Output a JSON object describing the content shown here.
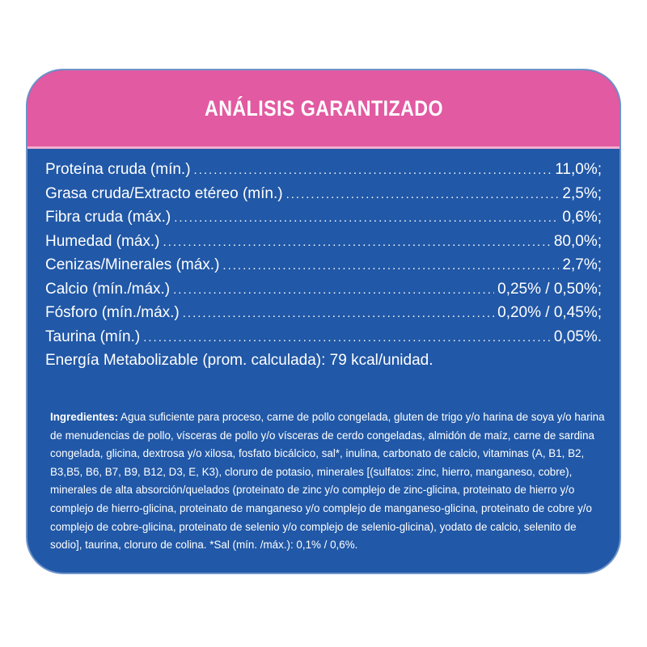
{
  "header": {
    "title": "ANÁLISIS GARANTIZADO"
  },
  "analysis": {
    "rows": [
      {
        "label": "Proteína cruda (mín.)",
        "value": "11,0%;"
      },
      {
        "label": "Grasa cruda/Extracto etéreo (mín.)",
        "value": "2,5%;"
      },
      {
        "label": "Fibra cruda (máx.)",
        "value": "0,6%;"
      },
      {
        "label": "Humedad (máx.)",
        "value": "80,0%;"
      },
      {
        "label": "Cenizas/Minerales (máx.)",
        "value": "2,7%;"
      },
      {
        "label": "Calcio (mín./máx.)",
        "value": "0,25% / 0,50%;"
      },
      {
        "label": "Fósforo (mín./máx.)",
        "value": "0,20% / 0,45%;"
      },
      {
        "label": "Taurina (mín.)",
        "value": "0,05%."
      }
    ],
    "energy": "Energía Metabolizable (prom. calculada): 79 kcal/unidad."
  },
  "ingredients": {
    "label": "Ingredientes:",
    "text": " Agua suficiente para proceso, carne de pollo congelada, gluten de trigo y/o harina de soya y/o harina de menudencias de pollo, vísceras de pollo y/o vísceras de cerdo congeladas, almidón de maíz, carne de sardina congelada, glicina, dextrosa y/o xilosa, fosfato bicálcico, sal*, inulina, carbonato de calcio, vitaminas (A, B1, B2, B3,B5, B6, B7, B9, B12, D3, E, K3), cloruro de potasio, minerales [(sulfatos: zinc, hierro, manganeso, cobre), minerales de alta absorción/quelados (proteinato de zinc y/o complejo de zinc-glicina, proteinato de hierro y/o complejo de hierro-glicina, proteinato de manganeso y/o complejo de manganeso-glicina, proteinato de cobre y/o complejo de cobre-glicina, proteinato de selenio y/o complejo de selenio-glicina), yodato de calcio, selenito de sodio], taurina, cloruro de colina. *Sal (mín. /máx.): 0,1% / 0,6%."
  },
  "colors": {
    "header_pink": "#e25aa2",
    "panel_blue": "#2158a7",
    "text": "#ffffff"
  }
}
